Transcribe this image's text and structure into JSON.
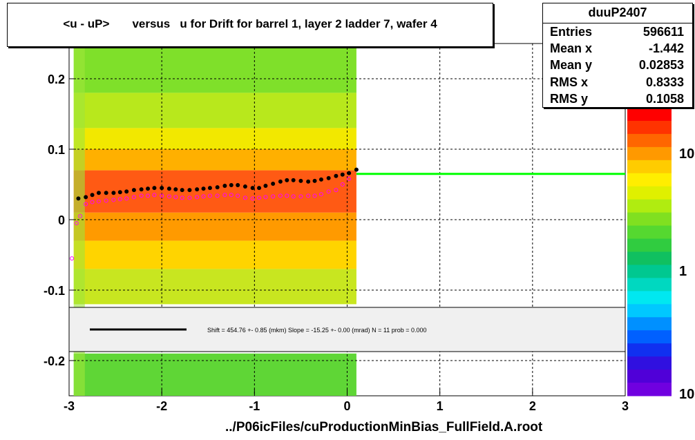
{
  "title": "<u - uP>       versus   u for Drift for barrel 1, layer 2 ladder 7, wafer 4",
  "footer": "../P06icFiles/cuProductionMinBias_FullField.A.root",
  "stats": {
    "name": "duuP2407",
    "rows": [
      {
        "label": "Entries",
        "value": "596611"
      },
      {
        "label": "Mean x",
        "value": "-1.442"
      },
      {
        "label": "Mean y",
        "value": "0.02853"
      },
      {
        "label": "RMS x",
        "value": "0.8333"
      },
      {
        "label": "RMS y",
        "value": "0.1058"
      }
    ]
  },
  "fit_text": "Shift =   454.76 +- 0.85 (mkm) Slope =   -15.25 +- 0.00 (mrad)  N = 11 prob = 0.000",
  "colors": {
    "profile": "#000000",
    "secondary_profile": "#ff00ff",
    "fit_line": "#00ff00",
    "grid": "#000000"
  },
  "chart_data": {
    "type": "heatmap",
    "xlim": [
      -3,
      3
    ],
    "ylim": [
      -0.25,
      0.25
    ],
    "xticks": [
      -3,
      -2,
      -1,
      0,
      1,
      2,
      3
    ],
    "xtick_labels": [
      "-3",
      "-2",
      "-1",
      "0",
      "1",
      "2",
      "3"
    ],
    "yticks": [
      -0.2,
      -0.1,
      0,
      0.1,
      0.2
    ],
    "ytick_labels": [
      "-0.2",
      "-0.1",
      "0",
      "0.1",
      "0.2"
    ],
    "grid": true,
    "heatmap_x_range": [
      -2.95,
      0.1
    ],
    "colorbar_labels": [
      "10",
      "1",
      "10"
    ],
    "profile_black": {
      "x": [
        -2.9,
        -2.82,
        -2.75,
        -2.68,
        -2.6,
        -2.52,
        -2.45,
        -2.38,
        -2.3,
        -2.22,
        -2.15,
        -2.08,
        -2.0,
        -1.92,
        -1.85,
        -1.78,
        -1.7,
        -1.62,
        -1.55,
        -1.48,
        -1.4,
        -1.32,
        -1.25,
        -1.18,
        -1.1,
        -1.02,
        -0.95,
        -0.88,
        -0.8,
        -0.72,
        -0.65,
        -0.58,
        -0.5,
        -0.42,
        -0.35,
        -0.28,
        -0.2,
        -0.12,
        -0.05,
        0.02,
        0.1
      ],
      "y": [
        0.03,
        0.032,
        0.035,
        0.038,
        0.038,
        0.038,
        0.039,
        0.04,
        0.042,
        0.043,
        0.044,
        0.045,
        0.045,
        0.044,
        0.043,
        0.042,
        0.042,
        0.043,
        0.044,
        0.045,
        0.046,
        0.048,
        0.049,
        0.049,
        0.047,
        0.045,
        0.045,
        0.048,
        0.051,
        0.054,
        0.056,
        0.056,
        0.055,
        0.054,
        0.055,
        0.057,
        0.059,
        0.062,
        0.064,
        0.066,
        0.071
      ]
    },
    "profile_magenta": {
      "x": [
        -2.97,
        -2.92,
        -2.88,
        -2.82,
        -2.75,
        -2.68,
        -2.6,
        -2.52,
        -2.45,
        -2.38,
        -2.3,
        -2.22,
        -2.15,
        -2.08,
        -2.0,
        -1.92,
        -1.85,
        -1.78,
        -1.7,
        -1.62,
        -1.55,
        -1.48,
        -1.4,
        -1.32,
        -1.25,
        -1.18,
        -1.1,
        -1.02,
        -0.95,
        -0.88,
        -0.8,
        -0.72,
        -0.65,
        -0.58,
        -0.5,
        -0.42,
        -0.35,
        -0.28,
        -0.2,
        -0.12,
        -0.05,
        0.02
      ],
      "y": [
        -0.055,
        -0.005,
        0.005,
        0.022,
        0.025,
        0.026,
        0.027,
        0.028,
        0.029,
        0.03,
        0.032,
        0.034,
        0.034,
        0.035,
        0.034,
        0.033,
        0.032,
        0.031,
        0.031,
        0.032,
        0.033,
        0.034,
        0.034,
        0.035,
        0.035,
        0.034,
        0.031,
        0.03,
        0.031,
        0.032,
        0.033,
        0.034,
        0.034,
        0.033,
        0.033,
        0.034,
        0.034,
        0.036,
        0.04,
        0.042,
        0.05,
        0.058
      ]
    },
    "fit_line": {
      "x": [
        0.1,
        3.0
      ],
      "y": [
        0.065,
        0.065
      ]
    }
  }
}
